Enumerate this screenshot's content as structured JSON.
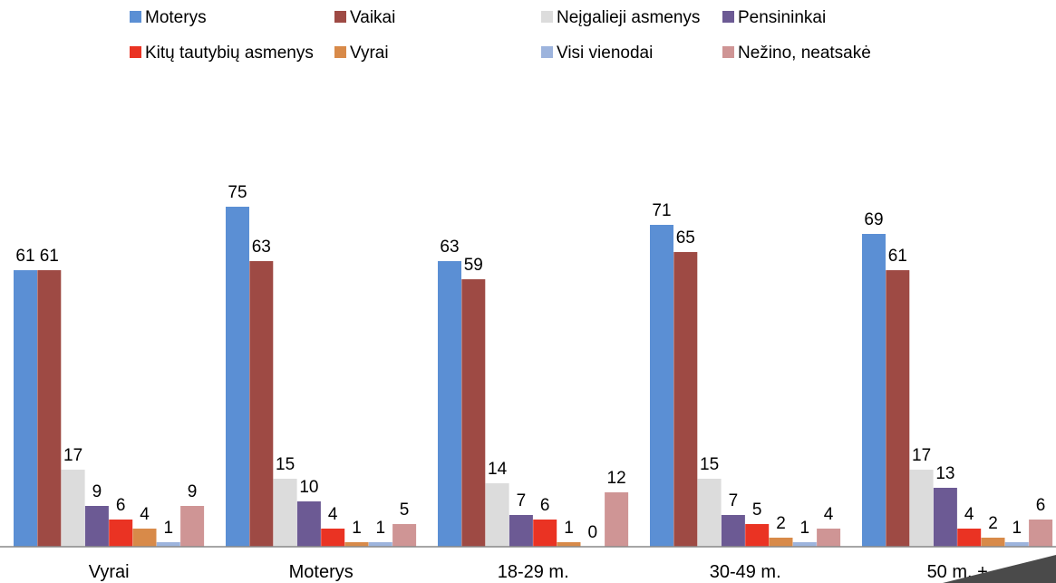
{
  "chart_data": {
    "type": "bar",
    "categories": [
      "Vyrai",
      "Moterys",
      "18-29 m.",
      "30-49 m.",
      "50 m. +"
    ],
    "series": [
      {
        "name": "Moterys",
        "color": "#5b8fd4",
        "values": [
          61,
          75,
          63,
          71,
          69
        ]
      },
      {
        "name": "Vaikai",
        "color": "#9e4a44",
        "values": [
          61,
          63,
          59,
          65,
          61
        ]
      },
      {
        "name": "Neįgalieji asmenys",
        "color": "#dcdcdc",
        "values": [
          17,
          15,
          14,
          15,
          17
        ]
      },
      {
        "name": "Pensininkai",
        "color": "#6c5a94",
        "values": [
          9,
          10,
          7,
          7,
          13
        ]
      },
      {
        "name": "Kitų tautybių asmenys",
        "color": "#ea3323",
        "values": [
          6,
          4,
          6,
          5,
          4
        ]
      },
      {
        "name": "Vyrai",
        "color": "#d88a49",
        "values": [
          4,
          1,
          1,
          2,
          2
        ]
      },
      {
        "name": "Visi vienodai",
        "color": "#9db4dd",
        "values": [
          1,
          1,
          0,
          1,
          1
        ]
      },
      {
        "name": "Nežino, neatsakė",
        "color": "#cf9595",
        "values": [
          9,
          5,
          12,
          4,
          6
        ]
      }
    ],
    "ylim": [
      0,
      80
    ],
    "grid": false,
    "legend": "top",
    "data_labels": true
  }
}
